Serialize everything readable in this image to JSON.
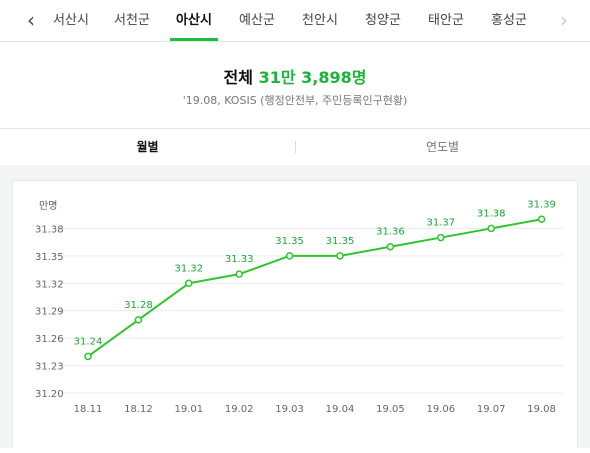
{
  "tabs": {
    "prev_icon": "chevron-left-icon",
    "next_icon": "chevron-right-icon",
    "items": [
      {
        "label": "서산시"
      },
      {
        "label": "서천군"
      },
      {
        "label": "아산시",
        "selected": true
      },
      {
        "label": "예산군"
      },
      {
        "label": "천안시"
      },
      {
        "label": "청양군"
      },
      {
        "label": "태안군"
      },
      {
        "label": "홍성군"
      }
    ]
  },
  "summary": {
    "total_label": "전체",
    "total_value": "31만 3,898명",
    "source": "'19.08, KOSIS (행정안전부, 주민등록인구현황)"
  },
  "subtabs": {
    "monthly": "월별",
    "yearly": "연도별",
    "selected": "monthly"
  },
  "colors": {
    "accent": "#19b43a",
    "line": "#2fc52c"
  },
  "chart_data": {
    "type": "line",
    "unit_label": "만명",
    "categories": [
      "18.11",
      "18.12",
      "19.01",
      "19.02",
      "19.03",
      "19.04",
      "19.05",
      "19.06",
      "19.07",
      "19.08"
    ],
    "series": [
      {
        "values": [
          31.24,
          31.28,
          31.32,
          31.33,
          31.35,
          31.35,
          31.36,
          31.37,
          31.38,
          31.39
        ],
        "labels": [
          "31.24",
          "31.28",
          "31.32",
          "31.33",
          "31.35",
          "31.35",
          "31.36",
          "31.37",
          "31.38",
          "31.39"
        ]
      }
    ],
    "yticks": [
      "31.20",
      "31.23",
      "31.26",
      "31.29",
      "31.32",
      "31.35",
      "31.38"
    ],
    "ylim": [
      31.2,
      31.41
    ],
    "grid": true,
    "legend": "none"
  }
}
